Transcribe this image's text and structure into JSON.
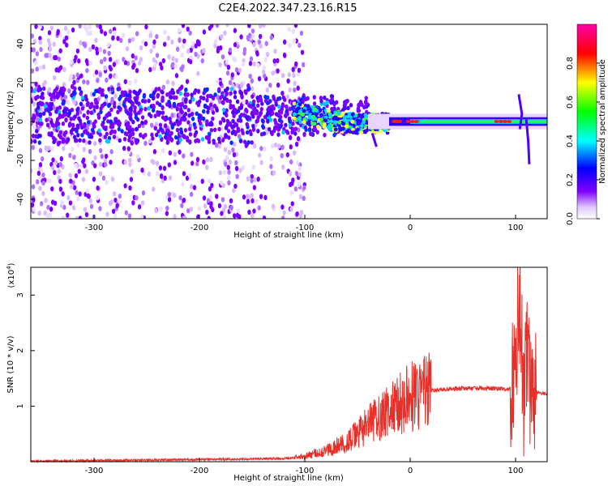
{
  "figure": {
    "title": "C2E4.2022.347.23.16.R15"
  },
  "chart_data": [
    {
      "type": "heatmap",
      "panel": "spectrogram",
      "xlabel": "Height of straight line (km)",
      "ylabel": "Frequency (Hz)",
      "xlim": [
        -360,
        130
      ],
      "ylim": [
        -50,
        50
      ],
      "x_ticks": [
        -300,
        -200,
        -100,
        0,
        100
      ],
      "y_ticks": [
        -40,
        -20,
        0,
        20,
        40
      ],
      "colorbar": {
        "label": "Normalized spectral amplitude",
        "range": [
          0,
          1
        ],
        "ticks": [
          0.0,
          0.2,
          0.4,
          0.6,
          0.8
        ],
        "colormap": [
          "#ffffff",
          "#e0c8ff",
          "#8000ff",
          "#0000ff",
          "#00ffff",
          "#00ff00",
          "#ffff00",
          "#ff0000",
          "#ff00aa"
        ]
      },
      "carrier_track": {
        "description_free": true,
        "points": [
          {
            "x": -150,
            "y": 5
          },
          {
            "x": -120,
            "y": 7
          },
          {
            "x": -100,
            "y": 5
          },
          {
            "x": -80,
            "y": 3
          },
          {
            "x": -60,
            "y": 0
          },
          {
            "x": -40,
            "y": -2
          },
          {
            "x": -20,
            "y": 0
          },
          {
            "x": 0,
            "y": 0
          },
          {
            "x": 50,
            "y": 0
          },
          {
            "x": 100,
            "y": 0
          },
          {
            "x": 130,
            "y": 0
          }
        ]
      }
    },
    {
      "type": "line",
      "panel": "snr",
      "xlabel": "Height of straight line (km)",
      "ylabel": "SNR (10 * v/v)",
      "y_multiplier": "(x10",
      "y_multiplier_exp": "4",
      "y_multiplier_close": ")",
      "xlim": [
        -360,
        130
      ],
      "ylim": [
        0,
        3.5
      ],
      "x_ticks": [
        -300,
        -200,
        -100,
        0,
        100
      ],
      "y_ticks": [
        1,
        2,
        3
      ],
      "color": "#e8302a",
      "series": [
        {
          "x": [
            -360,
            -300,
            -250,
            -200,
            -150,
            -120,
            -100,
            -80,
            -60,
            -50,
            -40,
            -30,
            -20,
            -10,
            0,
            10,
            20,
            30,
            50,
            80,
            95,
            100,
            103,
            106,
            108,
            110,
            112,
            115,
            120,
            130
          ],
          "y": [
            0.01,
            0.02,
            0.03,
            0.04,
            0.05,
            0.06,
            0.1,
            0.2,
            0.35,
            0.5,
            0.65,
            0.8,
            0.9,
            1.05,
            1.15,
            1.25,
            1.28,
            1.3,
            1.32,
            1.32,
            1.3,
            1.8,
            3.0,
            2.0,
            1.0,
            1.8,
            2.0,
            0.8,
            1.25,
            1.22
          ]
        }
      ]
    }
  ]
}
